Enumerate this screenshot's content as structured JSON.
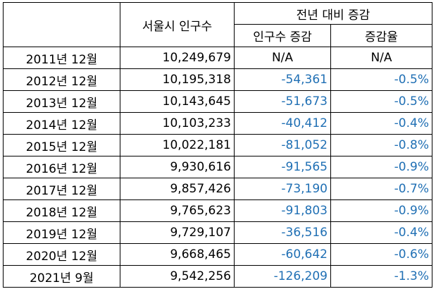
{
  "table": {
    "header": {
      "corner": "",
      "population": "서울시 인구수",
      "group": "전년 대비 증감",
      "change": "인구수 증감",
      "rate": "증감율"
    },
    "rows": [
      {
        "period": "2011년 12월",
        "population": "10,249,679",
        "change": "N/A",
        "rate": "N/A"
      },
      {
        "period": "2012년 12월",
        "population": "10,195,318",
        "change": "-54,361",
        "rate": "-0.5%"
      },
      {
        "period": "2013년 12월",
        "population": "10,143,645",
        "change": "-51,673",
        "rate": "-0.5%"
      },
      {
        "period": "2014년 12월",
        "population": "10,103,233",
        "change": "-40,412",
        "rate": "-0.4%"
      },
      {
        "period": "2015년 12월",
        "population": "10,022,181",
        "change": "-81,052",
        "rate": "-0.8%"
      },
      {
        "period": "2016년 12월",
        "population": "9,930,616",
        "change": "-91,565",
        "rate": "-0.9%"
      },
      {
        "period": "2017년 12월",
        "population": "9,857,426",
        "change": "-73,190",
        "rate": "-0.7%"
      },
      {
        "period": "2018년 12월",
        "population": "9,765,623",
        "change": "-91,803",
        "rate": "-0.9%"
      },
      {
        "period": "2019년 12월",
        "population": "9,729,107",
        "change": "-36,516",
        "rate": "-0.4%"
      },
      {
        "period": "2020년 12월",
        "population": "9,668,465",
        "change": "-60,642",
        "rate": "-0.6%"
      },
      {
        "period": "2021년 9월",
        "population": "9,542,256",
        "change": "-126,209",
        "rate": "-1.3%"
      }
    ]
  },
  "colors": {
    "negative_text": "#1f6fb4",
    "border": "#000000"
  }
}
